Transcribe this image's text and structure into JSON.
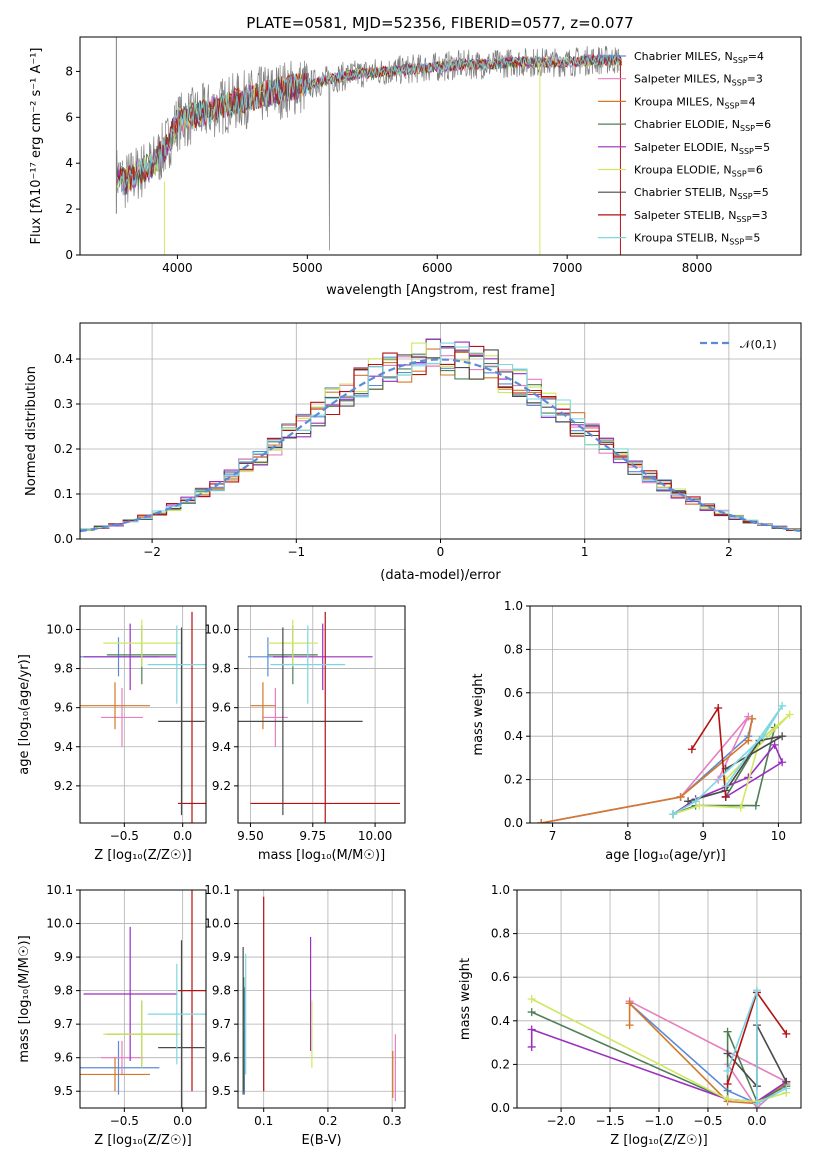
{
  "chart_data": [
    {
      "type": "line",
      "title": "PLATE=0581, MJD=52356, FIBERID=0577, z=0.077",
      "xlabel": "wavelength [Angstrom, rest frame]",
      "ylabel": "Flux [fλ10⁻¹⁷ erg cm⁻² s⁻¹ A⁻¹]",
      "xlim": [
        3250,
        8800
      ],
      "ylim": [
        0,
        9.5
      ],
      "xticks": [
        4000,
        5000,
        6000,
        7000,
        8000
      ],
      "yticks": [
        0,
        2,
        4,
        6,
        8
      ],
      "observed_spectrum": {
        "x": [
          3530,
          3600,
          3700,
          3800,
          3900,
          4000,
          4200,
          4400,
          4600,
          4800,
          5000,
          5200,
          5400,
          5600,
          5800,
          6000,
          6200,
          6400,
          6600,
          6800,
          7000,
          7200,
          7400
        ],
        "y": [
          3.5,
          3.2,
          3.6,
          3.9,
          4.6,
          5.8,
          6.2,
          6.6,
          6.9,
          7.2,
          7.4,
          7.7,
          7.9,
          8.0,
          8.1,
          8.2,
          8.3,
          8.3,
          8.4,
          8.4,
          8.4,
          8.5,
          8.5
        ]
      },
      "series": [
        {
          "name": "Chabrier MILES, N_SSP=4",
          "color": "#5b8bd8"
        },
        {
          "name": "Salpeter MILES, N_SSP=3",
          "color": "#e57fbf"
        },
        {
          "name": "Kroupa MILES, N_SSP=4",
          "color": "#d4782a"
        },
        {
          "name": "Chabrier ELODIE, N_SSP=6",
          "color": "#4f7f55"
        },
        {
          "name": "Salpeter ELODIE, N_SSP=5",
          "color": "#9a2fc0"
        },
        {
          "name": "Kroupa ELODIE, N_SSP=6",
          "color": "#cfe860"
        },
        {
          "name": "Chabrier STELIB, N_SSP=5",
          "color": "#4a4a4a"
        },
        {
          "name": "Salpeter STELIB, N_SSP=3",
          "color": "#b31212"
        },
        {
          "name": "Kroupa STELIB, N_SSP=5",
          "color": "#7ed7e0"
        }
      ],
      "legend": "right"
    },
    {
      "type": "line",
      "xlabel": "(data-model)/error",
      "ylabel": "Normed distribution",
      "xlim": [
        -2.5,
        2.5
      ],
      "ylim": [
        0,
        0.48
      ],
      "xticks": [
        -2,
        -1,
        0,
        1,
        2
      ],
      "yticks": [
        0.0,
        0.1,
        0.2,
        0.3,
        0.4
      ],
      "reference_curve": {
        "name": "𝒩(0,1)",
        "color": "#5b8bd8"
      },
      "histogram_bin_width": 0.1,
      "histogram_centers": [
        -2.45,
        -2.35,
        -2.25,
        -2.15,
        -2.05,
        -1.95,
        -1.85,
        -1.75,
        -1.65,
        -1.55,
        -1.45,
        -1.35,
        -1.25,
        -1.15,
        -1.05,
        -0.95,
        -0.85,
        -0.75,
        -0.65,
        -0.55,
        -0.45,
        -0.35,
        -0.25,
        -0.15,
        -0.05,
        0.05,
        0.15,
        0.25,
        0.35,
        0.45,
        0.55,
        0.65,
        0.75,
        0.85,
        0.95,
        1.05,
        1.15,
        1.25,
        1.35,
        1.45,
        1.55,
        1.65,
        1.75,
        1.85,
        1.95,
        2.05,
        2.15,
        2.25,
        2.35,
        2.45
      ],
      "histogram_base": [
        0.021,
        0.026,
        0.032,
        0.039,
        0.048,
        0.058,
        0.071,
        0.085,
        0.102,
        0.119,
        0.139,
        0.161,
        0.183,
        0.207,
        0.231,
        0.255,
        0.279,
        0.303,
        0.325,
        0.346,
        0.364,
        0.379,
        0.391,
        0.399,
        0.403,
        0.403,
        0.399,
        0.391,
        0.379,
        0.364,
        0.346,
        0.325,
        0.303,
        0.279,
        0.255,
        0.231,
        0.207,
        0.183,
        0.161,
        0.139,
        0.119,
        0.102,
        0.085,
        0.071,
        0.058,
        0.048,
        0.039,
        0.032,
        0.026,
        0.021
      ]
    },
    {
      "type": "scatter",
      "xlabel": "Z [log₁₀(Z/Z☉)]",
      "ylabel": "age  [log₁₀(age/yr)]",
      "xlim": [
        -0.88,
        0.2
      ],
      "ylim": [
        9.01,
        10.12
      ],
      "xticks": [
        -0.5,
        0.0
      ],
      "yticks": [
        9.2,
        9.4,
        9.6,
        9.8,
        10.0
      ],
      "crosses": [
        {
          "color": "#5b8bd8",
          "x": -0.55,
          "xerr": 0.35,
          "y": 9.86,
          "yerr": 0.1
        },
        {
          "color": "#e57fbf",
          "x": -0.52,
          "xerr": 0.18,
          "y": 9.55,
          "yerr": 0.15
        },
        {
          "color": "#d4782a",
          "x": -0.58,
          "xerr": 0.3,
          "y": 9.61,
          "yerr": 0.12
        },
        {
          "color": "#4f7f55",
          "x": -0.35,
          "xerr": 0.3,
          "y": 9.87,
          "yerr": 0.15
        },
        {
          "color": "#9a2fc0",
          "x": -0.45,
          "xerr": 0.4,
          "y": 9.86,
          "yerr": 0.17
        },
        {
          "color": "#cfe860",
          "x": -0.35,
          "xerr": 0.33,
          "y": 9.93,
          "yerr": 0.12
        },
        {
          "color": "#4a4a4a",
          "x": -0.01,
          "xerr": 0.2,
          "y": 9.53,
          "yerr": 0.48
        },
        {
          "color": "#b31212",
          "x": 0.08,
          "xerr": 0.12,
          "y": 9.11,
          "yerr": 0.98
        },
        {
          "color": "#7ed7e0",
          "x": -0.05,
          "xerr": 0.25,
          "y": 9.82,
          "yerr": 0.2
        }
      ]
    },
    {
      "type": "scatter",
      "xlabel": "mass [log₁₀(M/M☉)]",
      "xlim": [
        9.45,
        10.12
      ],
      "ylim": [
        9.01,
        10.12
      ],
      "xticks": [
        9.5,
        9.75,
        10.0
      ],
      "yticks": [
        9.2,
        9.4,
        9.6,
        9.8,
        10.0
      ],
      "crosses": [
        {
          "color": "#5b8bd8",
          "x": 9.57,
          "xerr": 0.08,
          "y": 9.86,
          "yerr": 0.1
        },
        {
          "color": "#e57fbf",
          "x": 9.6,
          "xerr": 0.05,
          "y": 9.55,
          "yerr": 0.15
        },
        {
          "color": "#d4782a",
          "x": 9.55,
          "xerr": 0.05,
          "y": 9.61,
          "yerr": 0.12
        },
        {
          "color": "#4f7f55",
          "x": 9.67,
          "xerr": 0.1,
          "y": 9.87,
          "yerr": 0.15
        },
        {
          "color": "#9a2fc0",
          "x": 9.79,
          "xerr": 0.2,
          "y": 9.86,
          "yerr": 0.17
        },
        {
          "color": "#cfe860",
          "x": 9.67,
          "xerr": 0.1,
          "y": 9.93,
          "yerr": 0.12
        },
        {
          "color": "#4a4a4a",
          "x": 9.63,
          "xerr": 0.32,
          "y": 9.53,
          "yerr": 0.48
        },
        {
          "color": "#b31212",
          "x": 9.8,
          "xerr": 0.3,
          "y": 9.11,
          "yerr": 0.98
        },
        {
          "color": "#7ed7e0",
          "x": 9.73,
          "xerr": 0.15,
          "y": 9.82,
          "yerr": 0.2
        }
      ]
    },
    {
      "type": "line",
      "xlabel": "age  [log₁₀(age/yr)]",
      "ylabel": "mass weight",
      "xlim": [
        6.7,
        10.3
      ],
      "ylim": [
        0,
        1.0
      ],
      "xticks": [
        7,
        8,
        9,
        10
      ],
      "yticks": [
        0.0,
        0.2,
        0.4,
        0.6,
        0.8,
        1.0
      ],
      "series": [
        {
          "color": "#5b8bd8",
          "x": [
            6.85,
            8.7,
            9.6,
            9.65
          ],
          "y": [
            0.0,
            0.12,
            0.4,
            0.48
          ]
        },
        {
          "color": "#e57fbf",
          "x": [
            6.85,
            8.7,
            9.6,
            9.2
          ],
          "y": [
            0.0,
            0.12,
            0.49,
            0.2
          ]
        },
        {
          "color": "#d4782a",
          "x": [
            6.85,
            8.7,
            9.6,
            9.65
          ],
          "y": [
            0.0,
            0.12,
            0.38,
            0.48
          ]
        },
        {
          "color": "#4f7f55",
          "x": [
            8.6,
            8.9,
            9.7,
            9.95,
            9.75,
            9.3
          ],
          "y": [
            0.04,
            0.08,
            0.08,
            0.44,
            0.38,
            0.12
          ]
        },
        {
          "color": "#9a2fc0",
          "x": [
            8.6,
            8.9,
            9.6,
            9.95,
            10.05,
            9.3
          ],
          "y": [
            0.04,
            0.11,
            0.21,
            0.36,
            0.28,
            0.12
          ]
        },
        {
          "color": "#cfe860",
          "x": [
            8.6,
            8.95,
            9.5,
            9.75,
            10.15,
            9.3
          ],
          "y": [
            0.04,
            0.08,
            0.07,
            0.38,
            0.5,
            0.2
          ]
        },
        {
          "color": "#4a4a4a",
          "x": [
            8.8,
            9.3,
            9.75,
            10.05,
            9.3
          ],
          "y": [
            0.1,
            0.15,
            0.38,
            0.4,
            0.25
          ]
        },
        {
          "color": "#b31212",
          "x": [
            8.85,
            9.2,
            9.3
          ],
          "y": [
            0.34,
            0.53,
            0.12
          ]
        },
        {
          "color": "#7ed7e0",
          "x": [
            8.6,
            8.9,
            9.8,
            10.05,
            9.3
          ],
          "y": [
            0.04,
            0.1,
            0.4,
            0.54,
            0.17
          ]
        }
      ]
    },
    {
      "type": "scatter",
      "xlabel": "Z [log₁₀(Z/Z☉)]",
      "ylabel": "mass [log₁₀(M/M☉)]",
      "xlim": [
        -0.88,
        0.2
      ],
      "ylim": [
        9.45,
        10.1
      ],
      "xticks": [
        -0.5,
        0.0
      ],
      "yticks": [
        9.5,
        9.6,
        9.7,
        9.8,
        9.9,
        10.0,
        10.1
      ],
      "crosses": [
        {
          "color": "#5b8bd8",
          "x": -0.55,
          "xerr": 0.35,
          "y": 9.57,
          "yerr": 0.08
        },
        {
          "color": "#e57fbf",
          "x": -0.52,
          "xerr": 0.18,
          "y": 9.6,
          "yerr": 0.05
        },
        {
          "color": "#d4782a",
          "x": -0.58,
          "xerr": 0.3,
          "y": 9.55,
          "yerr": 0.05
        },
        {
          "color": "#4f7f55",
          "x": -0.35,
          "xerr": 0.3,
          "y": 9.67,
          "yerr": 0.1
        },
        {
          "color": "#9a2fc0",
          "x": -0.45,
          "xerr": 0.4,
          "y": 9.79,
          "yerr": 0.2
        },
        {
          "color": "#cfe860",
          "x": -0.35,
          "xerr": 0.33,
          "y": 9.67,
          "yerr": 0.1
        },
        {
          "color": "#4a4a4a",
          "x": -0.01,
          "xerr": 0.2,
          "y": 9.63,
          "yerr": 0.32
        },
        {
          "color": "#b31212",
          "x": 0.08,
          "xerr": 0.12,
          "y": 9.8,
          "yerr": 0.3
        },
        {
          "color": "#7ed7e0",
          "x": -0.05,
          "xerr": 0.25,
          "y": 9.73,
          "yerr": 0.15
        }
      ]
    },
    {
      "type": "scatter",
      "xlabel": "E(B-V)",
      "xlim": [
        0.06,
        0.32
      ],
      "ylim": [
        9.45,
        10.1
      ],
      "xticks": [
        0.1,
        0.2,
        0.3
      ],
      "yticks": [
        9.5,
        9.6,
        9.7,
        9.8,
        9.9,
        10.0,
        10.1
      ],
      "error_bars": [
        {
          "color": "#5b8bd8",
          "x": 0.07,
          "y": 9.65,
          "yerr": 0.16
        },
        {
          "color": "#e57fbf",
          "x": 0.305,
          "y": 9.57,
          "yerr": 0.1
        },
        {
          "color": "#d4782a",
          "x": 0.301,
          "y": 9.55,
          "yerr": 0.07
        },
        {
          "color": "#4f7f55",
          "x": 0.069,
          "y": 9.67,
          "yerr": 0.17
        },
        {
          "color": "#9a2fc0",
          "x": 0.173,
          "y": 9.79,
          "yerr": 0.17
        },
        {
          "color": "#cfe860",
          "x": 0.175,
          "y": 9.67,
          "yerr": 0.1
        },
        {
          "color": "#4a4a4a",
          "x": 0.068,
          "y": 9.71,
          "yerr": 0.22
        },
        {
          "color": "#b31212",
          "x": 0.1,
          "y": 9.79,
          "yerr": 0.29
        },
        {
          "color": "#7ed7e0",
          "x": 0.072,
          "y": 9.73,
          "yerr": 0.18
        }
      ]
    },
    {
      "type": "line",
      "xlabel": "Z [log₁₀(Z/Z☉)]",
      "ylabel": "mass weight",
      "xlim": [
        -2.45,
        0.45
      ],
      "ylim": [
        0,
        1.0
      ],
      "xticks": [
        -2.0,
        -1.5,
        -1.0,
        -0.5,
        0.0
      ],
      "yticks": [
        0.0,
        0.2,
        0.4,
        0.6,
        0.8,
        1.0
      ],
      "series": [
        {
          "color": "#5b8bd8",
          "x": [
            -1.3,
            -0.3,
            0.0,
            0.3
          ],
          "y": [
            0.48,
            0.08,
            0.02,
            0.12
          ]
        },
        {
          "color": "#e57fbf",
          "x": [
            -1.3,
            0.3,
            0.0,
            -0.3
          ],
          "y": [
            0.49,
            0.12,
            0.0,
            0.2
          ]
        },
        {
          "color": "#d4782a",
          "x": [
            -1.3,
            -1.3,
            -0.3,
            0.0,
            0.3
          ],
          "y": [
            0.38,
            0.48,
            0.03,
            0.02,
            0.11
          ]
        },
        {
          "color": "#4f7f55",
          "x": [
            -2.3,
            -0.3,
            -0.3,
            0.0,
            0.3
          ],
          "y": [
            0.44,
            0.04,
            0.35,
            0.03,
            0.1
          ]
        },
        {
          "color": "#9a2fc0",
          "x": [
            -2.3,
            -2.3,
            -0.3,
            0.0,
            0.3
          ],
          "y": [
            0.28,
            0.36,
            0.04,
            0.03,
            0.12
          ]
        },
        {
          "color": "#cfe860",
          "x": [
            -2.3,
            -0.3,
            0.0,
            0.3
          ],
          "y": [
            0.5,
            0.04,
            0.03,
            0.07
          ]
        },
        {
          "color": "#4a4a4a",
          "x": [
            -0.3,
            0.0,
            0.0,
            0.3
          ],
          "y": [
            0.25,
            0.1,
            0.38,
            0.12
          ]
        },
        {
          "color": "#b31212",
          "x": [
            -0.3,
            0.0,
            0.3
          ],
          "y": [
            0.11,
            0.53,
            0.34
          ]
        },
        {
          "color": "#7ed7e0",
          "x": [
            -0.3,
            0.0,
            0.0,
            0.3
          ],
          "y": [
            0.17,
            0.54,
            0.02,
            0.09
          ]
        }
      ]
    }
  ]
}
